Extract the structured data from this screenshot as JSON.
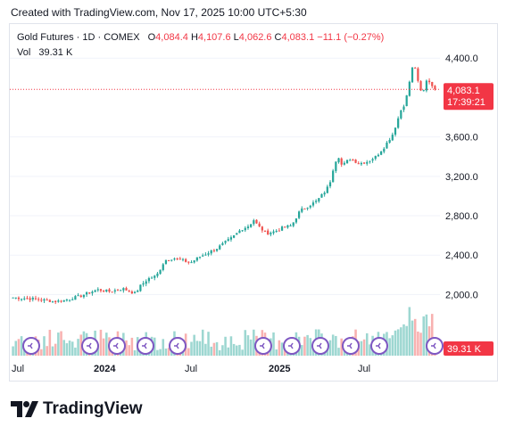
{
  "caption": "Created with TradingView.com, Nov 17, 2025 10:00 UTC+5:30",
  "legend": {
    "symbol": "Gold Futures · 1D · COMEX",
    "o_label": "O",
    "o_value": "4,084.4",
    "h_label": "H",
    "h_value": "4,107.6",
    "l_label": "L",
    "l_value": "4,062.6",
    "c_label": "C",
    "c_value": "4,083.1",
    "change": "−11.1 (−0.27%)",
    "vol_label": "Vol",
    "vol_value": "39.31 K"
  },
  "price_badge": {
    "price": "4,083.1",
    "countdown": "17:39:21"
  },
  "vol_badge": "39.31 K",
  "brand": "TradingView",
  "colors": {
    "up": "#26a69a",
    "down": "#ef5350",
    "badge": "#f23645",
    "grid": "#f0f3fa"
  },
  "chart_data": {
    "type": "candlestick",
    "title": "Gold Futures · 1D · COMEX",
    "x_ticks": [
      "Jul",
      "2024",
      "Jul",
      "2025",
      "Jul"
    ],
    "y_ticks": [
      "4,400.0",
      "3,600.0",
      "3,200.0",
      "2,800.0",
      "2,400.0",
      "2,000.0"
    ],
    "ylim": [
      1850,
      4420
    ],
    "last_price": 4083.1,
    "price_path": [
      [
        0,
        1970
      ],
      [
        5,
        1955
      ],
      [
        10,
        1930
      ],
      [
        12,
        1940
      ],
      [
        16,
        1985
      ],
      [
        20,
        2050
      ],
      [
        23,
        2030
      ],
      [
        26,
        2060
      ],
      [
        29,
        2010
      ],
      [
        30,
        2080
      ],
      [
        32,
        2160
      ],
      [
        34,
        2190
      ],
      [
        36,
        2350
      ],
      [
        38,
        2370
      ],
      [
        40,
        2350
      ],
      [
        42,
        2320
      ],
      [
        44,
        2380
      ],
      [
        46,
        2420
      ],
      [
        48,
        2460
      ],
      [
        50,
        2520
      ],
      [
        52,
        2580
      ],
      [
        54,
        2660
      ],
      [
        56,
        2700
      ],
      [
        57,
        2760
      ],
      [
        58,
        2700
      ],
      [
        60,
        2620
      ],
      [
        62,
        2640
      ],
      [
        64,
        2680
      ],
      [
        66,
        2700
      ],
      [
        68,
        2850
      ],
      [
        70,
        2900
      ],
      [
        72,
        2950
      ],
      [
        74,
        3050
      ],
      [
        75,
        3120
      ],
      [
        76,
        3300
      ],
      [
        77,
        3420
      ],
      [
        78,
        3300
      ],
      [
        79,
        3350
      ],
      [
        80,
        3380
      ],
      [
        82,
        3330
      ],
      [
        84,
        3350
      ],
      [
        86,
        3400
      ],
      [
        88,
        3500
      ],
      [
        90,
        3630
      ],
      [
        92,
        3880
      ],
      [
        93,
        3950
      ],
      [
        94,
        4170
      ],
      [
        95,
        4370
      ],
      [
        96,
        4150
      ],
      [
        97,
        4020
      ],
      [
        98,
        4180
      ],
      [
        99,
        4150
      ],
      [
        100,
        4083
      ]
    ],
    "volume_note": "per-candle volume bars, colored by candle direction; last bar 39.31 K"
  }
}
